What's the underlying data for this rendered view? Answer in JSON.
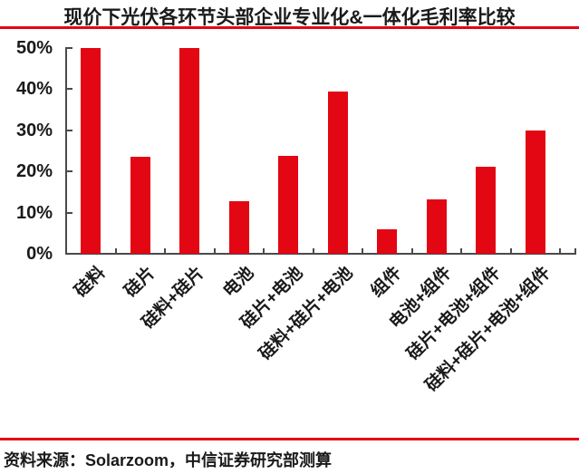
{
  "title": "现价下光伏各环节头部企业专业化&一体化毛利率比较",
  "source": "资料来源：Solarzoom，中信证券研究部测算",
  "colors": {
    "bar": "#e30613",
    "rule": "#e30613",
    "axis": "#4a4a4a",
    "text": "#1a1a1a"
  },
  "chart_data": {
    "type": "bar",
    "title": "现价下光伏各环节头部企业专业化&一体化毛利率比较",
    "categories": [
      "硅料",
      "硅片",
      "硅料+硅片",
      "电池",
      "硅片+电池",
      "硅料+硅片+电池",
      "组件",
      "电池+组件",
      "硅片+电池+组件",
      "硅料+硅片+电池+组件"
    ],
    "values": [
      50,
      23.5,
      50,
      12.8,
      23.8,
      39.4,
      6,
      13.3,
      21.2,
      29.9
    ],
    "unit": "%",
    "xlabel": "",
    "ylabel": "",
    "ylim": [
      0,
      50
    ],
    "y_ticks": [
      "0%",
      "10%",
      "20%",
      "30%",
      "40%",
      "50%"
    ],
    "y_tick_values": [
      0,
      10,
      20,
      30,
      40,
      50
    ],
    "grid": false,
    "legend": "none",
    "bar_color": "#e30613",
    "source": "资料来源：Solarzoom，中信证券研究部测算"
  }
}
